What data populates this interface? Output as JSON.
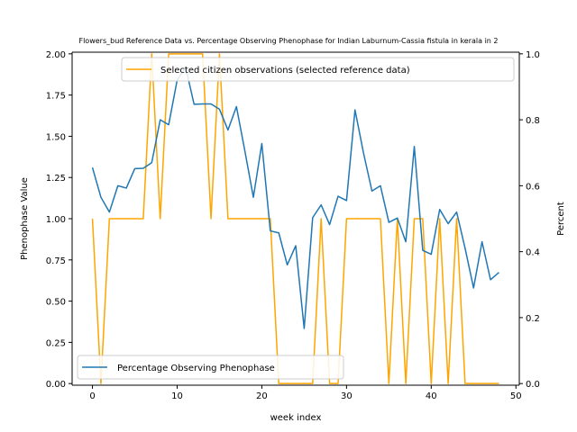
{
  "chart_data": {
    "type": "line",
    "title": "Flowers_bud Reference Data vs. Percentage Observing Phenophase for Indian Laburnum-Cassia fistula in kerala in 2",
    "xlabel": "week index",
    "ylabel_left": "Phenophase Value",
    "ylabel_right": "Percent",
    "xlim": [
      -2.4,
      50.4
    ],
    "ylim_left": [
      -0.01,
      2.01
    ],
    "ylim_right": [
      -0.005,
      1.005
    ],
    "x_ticks": [
      0,
      10,
      20,
      30,
      40,
      50
    ],
    "y_left_ticks": [
      "0.00",
      "0.25",
      "0.50",
      "0.75",
      "1.00",
      "1.25",
      "1.50",
      "1.75",
      "2.00"
    ],
    "y_right_ticks": [
      "0.0",
      "0.2",
      "0.4",
      "0.6",
      "0.8",
      "1.0"
    ],
    "series": [
      {
        "name": "Selected citizen observations (selected reference data)",
        "axis": "left",
        "color": "#ffa500",
        "legend_position": "upper right",
        "x": [
          0,
          1,
          2,
          3,
          4,
          5,
          6,
          7,
          8,
          9,
          10,
          11,
          12,
          13,
          14,
          15,
          16,
          17,
          18,
          19,
          20,
          21,
          22,
          23,
          24,
          25,
          26,
          27,
          28,
          29,
          30,
          31,
          32,
          33,
          34,
          35,
          36,
          37,
          38,
          39,
          40,
          41,
          42,
          43,
          44,
          45,
          46,
          47,
          48
        ],
        "y": [
          1,
          0,
          1,
          1,
          1,
          1,
          1,
          2,
          1,
          2,
          2,
          2,
          2,
          2,
          1,
          2,
          1,
          1,
          1,
          1,
          1,
          1,
          0,
          0,
          0,
          0,
          0,
          1,
          0,
          0,
          1,
          1,
          1,
          1,
          1,
          0,
          1,
          0,
          1,
          1,
          0,
          1,
          0,
          1,
          0,
          0,
          0,
          0,
          0
        ]
      },
      {
        "name": "Percentage Observing Phenophase",
        "axis": "right",
        "color": "#1f77b4",
        "legend_position": "lower left",
        "x": [
          0,
          1,
          2,
          3,
          4,
          5,
          6,
          7,
          8,
          9,
          10,
          11,
          12,
          13,
          14,
          15,
          16,
          17,
          18,
          19,
          20,
          21,
          22,
          23,
          24,
          25,
          26,
          27,
          28,
          29,
          30,
          31,
          32,
          33,
          34,
          35,
          36,
          37,
          38,
          39,
          40,
          41,
          42,
          43,
          44,
          45,
          46,
          47,
          48
        ],
        "y": [
          0.655,
          0.565,
          0.52,
          0.6,
          0.593,
          0.652,
          0.653,
          0.67,
          0.8,
          0.785,
          0.92,
          0.96,
          0.847,
          0.848,
          0.848,
          0.832,
          0.769,
          0.84,
          0.705,
          0.565,
          0.728,
          0.463,
          0.457,
          0.36,
          0.418,
          0.167,
          0.503,
          0.542,
          0.482,
          0.568,
          0.555,
          0.83,
          0.7,
          0.584,
          0.6,
          0.489,
          0.502,
          0.43,
          0.719,
          0.404,
          0.392,
          0.528,
          0.485,
          0.52,
          0.41,
          0.29,
          0.43,
          0.315,
          0.337
        ]
      }
    ]
  }
}
